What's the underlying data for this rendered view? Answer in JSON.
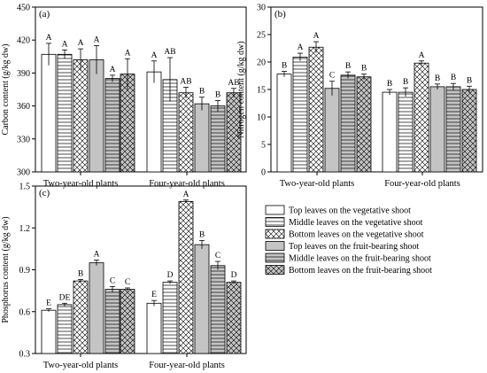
{
  "chart_data": [
    {
      "panel": "(a)",
      "type": "bar",
      "ylabel": "Carbon content (g/kg dw)",
      "ylim": [
        300,
        450
      ],
      "yticks": [
        300,
        330,
        360,
        390,
        420,
        450
      ],
      "categories": [
        "Two-year-old plants",
        "Four-year-old plants"
      ],
      "series": [
        {
          "name": "Top leaves on the vegetative shoot",
          "values": [
            407,
            391
          ],
          "errors": [
            10,
            10
          ],
          "letters": [
            "A",
            "A"
          ]
        },
        {
          "name": "Middle leaves on the vegetative shoot",
          "values": [
            407,
            384
          ],
          "errors": [
            4,
            20
          ],
          "letters": [
            "A",
            "AB"
          ]
        },
        {
          "name": "Bottom leaves on the vegetative shoot",
          "values": [
            402,
            372
          ],
          "errors": [
            10,
            5
          ],
          "letters": [
            "A",
            "AB"
          ]
        },
        {
          "name": "Top leaves on the fruit-bearing shoot",
          "values": [
            402,
            362
          ],
          "errors": [
            13,
            6
          ],
          "letters": [
            "A",
            "B"
          ]
        },
        {
          "name": "Middle leaves on the fruit-bearing shoot",
          "values": [
            385,
            360
          ],
          "errors": [
            3,
            5
          ],
          "letters": [
            "A",
            "B"
          ]
        },
        {
          "name": "Bottom leaves on the fruit-bearing shoot",
          "values": [
            389,
            372
          ],
          "errors": [
            14,
            4
          ],
          "letters": [
            "A",
            "AB"
          ]
        }
      ]
    },
    {
      "panel": "(b)",
      "type": "bar",
      "ylabel": "Nitrogen content (g/kg dw)",
      "ylim": [
        0,
        30
      ],
      "yticks": [
        0,
        5,
        10,
        15,
        20,
        25,
        30
      ],
      "categories": [
        "Two-year-old plants",
        "Four-year-old plants"
      ],
      "series": [
        {
          "name": "Top leaves on the vegetative shoot",
          "values": [
            17.8,
            14.5
          ],
          "errors": [
            0.5,
            0.5
          ],
          "letters": [
            "B",
            "B"
          ]
        },
        {
          "name": "Middle leaves on the vegetative shoot",
          "values": [
            20.9,
            14.5
          ],
          "errors": [
            0.7,
            0.8
          ],
          "letters": [
            "A",
            "B"
          ]
        },
        {
          "name": "Bottom leaves on the vegetative shoot",
          "values": [
            22.7,
            19.8
          ],
          "errors": [
            1.0,
            0.4
          ],
          "letters": [
            "A",
            "A"
          ]
        },
        {
          "name": "Top leaves on the fruit-bearing shoot",
          "values": [
            15.2,
            15.5
          ],
          "errors": [
            1.3,
            0.5
          ],
          "letters": [
            "C",
            "B"
          ]
        },
        {
          "name": "Middle leaves on the fruit-bearing shoot",
          "values": [
            17.6,
            15.5
          ],
          "errors": [
            0.6,
            0.6
          ],
          "letters": [
            "B",
            "B"
          ]
        },
        {
          "name": "Bottom leaves on the fruit-bearing shoot",
          "values": [
            17.3,
            15.0
          ],
          "errors": [
            0.5,
            0.6
          ],
          "letters": [
            "B",
            "B"
          ]
        }
      ]
    },
    {
      "panel": "(c)",
      "type": "bar",
      "ylabel": "Phosphorus content (g/kg dw)",
      "ylim": [
        0.3,
        1.5
      ],
      "yticks": [
        0.3,
        0.6,
        0.9,
        1.2,
        1.5
      ],
      "categories": [
        "Two-year-old plants",
        "Four-year-old plants"
      ],
      "series": [
        {
          "name": "Top leaves on the vegetative shoot",
          "values": [
            0.61,
            0.66
          ],
          "errors": [
            0.01,
            0.02
          ],
          "letters": [
            "E",
            "E"
          ]
        },
        {
          "name": "Middle leaves on the vegetative shoot",
          "values": [
            0.65,
            0.81
          ],
          "errors": [
            0.01,
            0.01
          ],
          "letters": [
            "DE",
            "D"
          ]
        },
        {
          "name": "Bottom leaves on the vegetative shoot",
          "values": [
            0.82,
            1.39
          ],
          "errors": [
            0.01,
            0.01
          ],
          "letters": [
            "B",
            "A"
          ]
        },
        {
          "name": "Top leaves on the fruit-bearing shoot",
          "values": [
            0.95,
            1.08
          ],
          "errors": [
            0.02,
            0.03
          ],
          "letters": [
            "A",
            "B"
          ]
        },
        {
          "name": "Middle leaves on the fruit-bearing shoot",
          "values": [
            0.76,
            0.93
          ],
          "errors": [
            0.02,
            0.03
          ],
          "letters": [
            "C",
            "C"
          ]
        },
        {
          "name": "Bottom leaves on the fruit-bearing shoot",
          "values": [
            0.76,
            0.81
          ],
          "errors": [
            0.01,
            0.01
          ],
          "letters": [
            "C",
            "D"
          ]
        }
      ]
    }
  ],
  "legend": {
    "placement": "bottom-right",
    "items": [
      {
        "label": "Top leaves on the vegetative shoot",
        "pattern": "blank"
      },
      {
        "label": "Middle leaves on the vegetative shoot",
        "pattern": "hlines"
      },
      {
        "label": "Bottom leaves on the vegetative shoot",
        "pattern": "crosshatch"
      },
      {
        "label": "Top leaves on the fruit-bearing shoot",
        "pattern": "gray"
      },
      {
        "label": "Middle leaves on the fruit-bearing shoot",
        "pattern": "gray-hlines"
      },
      {
        "label": "Bottom leaves on the fruit-bearing shoot",
        "pattern": "gray-crosshatch"
      }
    ]
  },
  "colors": {
    "gray_fill": "#c4c4c4",
    "line": "#000000",
    "white": "#ffffff"
  }
}
